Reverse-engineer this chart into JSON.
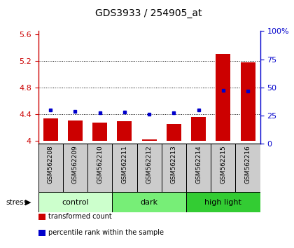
{
  "title": "GDS3933 / 254905_at",
  "samples": [
    "GSM562208",
    "GSM562209",
    "GSM562210",
    "GSM562211",
    "GSM562212",
    "GSM562213",
    "GSM562214",
    "GSM562215",
    "GSM562216"
  ],
  "bar_values": [
    4.33,
    4.3,
    4.27,
    4.29,
    4.02,
    4.25,
    4.35,
    5.3,
    5.18
  ],
  "dot_values": [
    4.46,
    4.44,
    4.42,
    4.43,
    4.4,
    4.42,
    4.46,
    4.76,
    4.75
  ],
  "bar_base": 4.0,
  "ylim_left": [
    3.95,
    5.65
  ],
  "ylim_right": [
    0,
    100
  ],
  "yticks_left": [
    4.0,
    4.4,
    4.8,
    5.2,
    5.6
  ],
  "yticks_right": [
    0,
    25,
    50,
    75,
    100
  ],
  "ytick_labels_left": [
    "4",
    "4.4",
    "4.8",
    "5.2",
    "5.6"
  ],
  "ytick_labels_right": [
    "0",
    "25",
    "50",
    "75",
    "100%"
  ],
  "hlines": [
    4.4,
    4.8,
    5.2
  ],
  "bar_color": "#cc0000",
  "dot_color": "#0000cc",
  "bar_width": 0.6,
  "groups": [
    {
      "label": "control",
      "start": 0,
      "end": 3,
      "color": "#ccffcc"
    },
    {
      "label": "dark",
      "start": 3,
      "end": 6,
      "color": "#77ee77"
    },
    {
      "label": "high light",
      "start": 6,
      "end": 9,
      "color": "#33cc33"
    }
  ],
  "stress_label": "stress",
  "legend_items": [
    {
      "label": "transformed count",
      "color": "#cc0000"
    },
    {
      "label": "percentile rank within the sample",
      "color": "#0000cc"
    }
  ],
  "title_color": "#000000",
  "left_axis_color": "#cc0000",
  "right_axis_color": "#0000cc",
  "bg_color": "#ffffff",
  "plot_bg_color": "#ffffff",
  "sample_box_color": "#cccccc"
}
